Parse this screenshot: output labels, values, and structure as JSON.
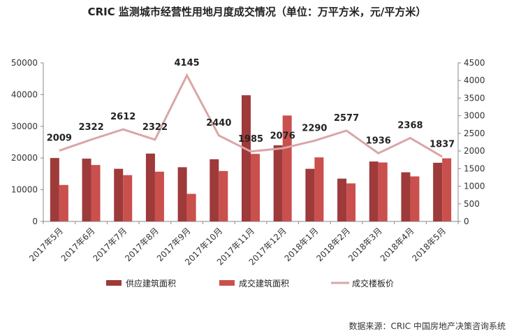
{
  "chart_data": {
    "type": "bar",
    "title": "CRIC 监测城市经营性用地月度成交情况（单位：万平方米，元/平方米）",
    "categories": [
      "2017年5月",
      "2017年6月",
      "2017年7月",
      "2017年8月",
      "2017年9月",
      "2017年10月",
      "2017年11月",
      "2017年12月",
      "2018年1月",
      "2018年2月",
      "2018年3月",
      "2018年4月",
      "2018年5月"
    ],
    "series": [
      {
        "name": "供应建筑面积",
        "type": "bar",
        "axis": "left",
        "color": "#9e3a3a",
        "values": [
          20000,
          19800,
          16600,
          21400,
          17100,
          19600,
          39800,
          24000,
          16600,
          13500,
          18900,
          15500,
          18500
        ]
      },
      {
        "name": "成交建筑面积",
        "type": "bar",
        "axis": "left",
        "color": "#c9504d",
        "values": [
          11500,
          17800,
          14600,
          15700,
          8700,
          15900,
          21300,
          33400,
          20200,
          12000,
          18600,
          14200,
          19900
        ]
      },
      {
        "name": "成交楼板价",
        "type": "line",
        "axis": "right",
        "color": "#d9a6a6",
        "values": [
          2009,
          2322,
          2612,
          2322,
          4145,
          2440,
          1985,
          2076,
          2290,
          2577,
          1936,
          2368,
          1837
        ]
      }
    ],
    "y_left": {
      "min": 0,
      "max": 50000,
      "ticks": [
        0,
        10000,
        20000,
        30000,
        40000,
        50000
      ]
    },
    "y_right": {
      "min": 0,
      "max": 4500,
      "ticks": [
        0,
        500,
        1000,
        1500,
        2000,
        2500,
        3000,
        3500,
        4000,
        4500
      ]
    },
    "grid": false,
    "legend": "bottom",
    "source": "数据来源：CRIC 中国房地产决策咨询系统"
  }
}
